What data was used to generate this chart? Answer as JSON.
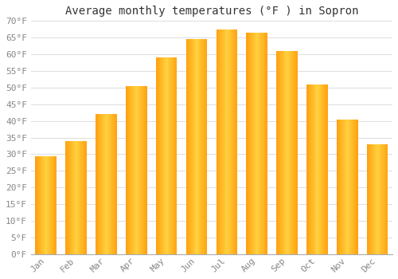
{
  "title": "Average monthly temperatures (°F ) in Sopron",
  "months": [
    "Jan",
    "Feb",
    "Mar",
    "Apr",
    "May",
    "Jun",
    "Jul",
    "Aug",
    "Sep",
    "Oct",
    "Nov",
    "Dec"
  ],
  "values": [
    29.5,
    34.0,
    42.0,
    50.5,
    59.0,
    64.5,
    67.5,
    66.5,
    61.0,
    51.0,
    40.5,
    33.0
  ],
  "bar_color_center": "#FFD966",
  "bar_color_edge": "#FFA500",
  "background_color": "#FFFFFF",
  "plot_bg_color": "#FFFFFF",
  "grid_color": "#DDDDDD",
  "text_color": "#888888",
  "title_color": "#333333",
  "ylim": [
    0,
    70
  ],
  "yticks": [
    0,
    5,
    10,
    15,
    20,
    25,
    30,
    35,
    40,
    45,
    50,
    55,
    60,
    65,
    70
  ],
  "title_fontsize": 10,
  "tick_fontsize": 8
}
